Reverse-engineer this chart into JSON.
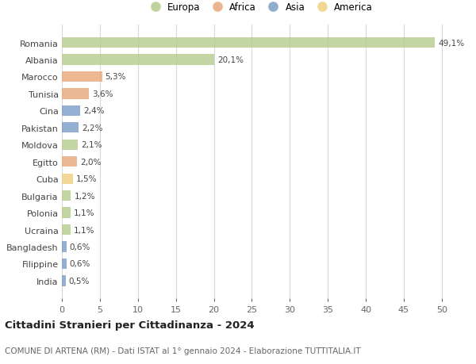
{
  "countries": [
    "Romania",
    "Albania",
    "Marocco",
    "Tunisia",
    "Cina",
    "Pakistan",
    "Moldova",
    "Egitto",
    "Cuba",
    "Bulgaria",
    "Polonia",
    "Ucraina",
    "Bangladesh",
    "Filippine",
    "India"
  ],
  "values": [
    49.1,
    20.1,
    5.3,
    3.6,
    2.4,
    2.2,
    2.1,
    2.0,
    1.5,
    1.2,
    1.1,
    1.1,
    0.6,
    0.6,
    0.5
  ],
  "labels": [
    "49,1%",
    "20,1%",
    "5,3%",
    "3,6%",
    "2,4%",
    "2,2%",
    "2,1%",
    "2,0%",
    "1,5%",
    "1,2%",
    "1,1%",
    "1,1%",
    "0,6%",
    "0,6%",
    "0,5%"
  ],
  "colors": [
    "#b5cc8e",
    "#b5cc8e",
    "#e8a87c",
    "#e8a87c",
    "#7b9ec7",
    "#7b9ec7",
    "#b5cc8e",
    "#e8a87c",
    "#f0d080",
    "#b5cc8e",
    "#b5cc8e",
    "#b5cc8e",
    "#7b9ec7",
    "#7b9ec7",
    "#7b9ec7"
  ],
  "legend_labels": [
    "Europa",
    "Africa",
    "Asia",
    "America"
  ],
  "legend_colors": [
    "#b5cc8e",
    "#e8a87c",
    "#7b9ec7",
    "#f0d080"
  ],
  "title": "Cittadini Stranieri per Cittadinanza - 2024",
  "subtitle": "COMUNE DI ARTENA (RM) - Dati ISTAT al 1° gennaio 2024 - Elaborazione TUTTITALIA.IT",
  "xlim": [
    0,
    52
  ],
  "xticks": [
    0,
    5,
    10,
    15,
    20,
    25,
    30,
    35,
    40,
    45,
    50
  ],
  "background_color": "#ffffff",
  "grid_color": "#d8d8d8"
}
